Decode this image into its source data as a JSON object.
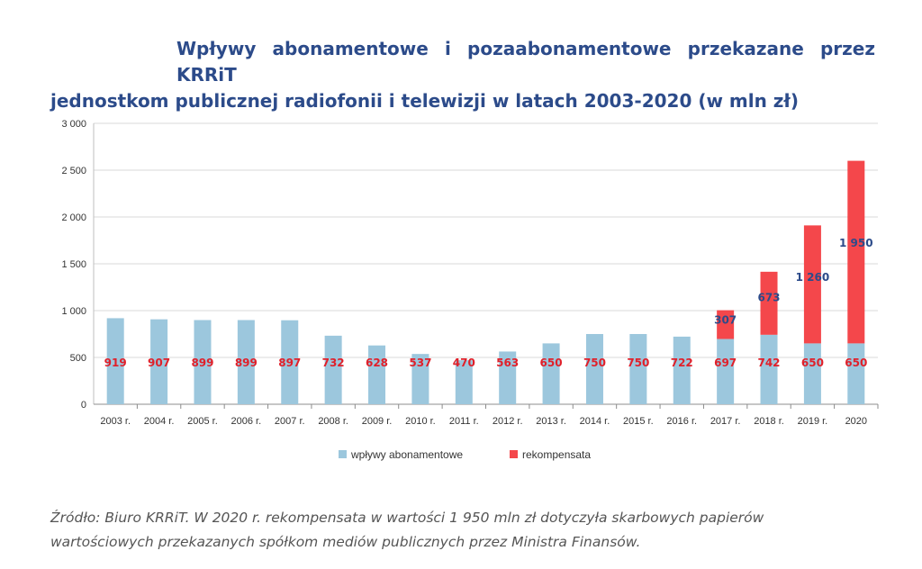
{
  "title_line1": "Wpływy abonamentowe i pozaabonamentowe przekazane przez KRRiT",
  "title_line2": "jednostkom publicznej radiofonii i telewizji w latach 2003-2020 (w mln zł)",
  "source_line1": "Źródło: Biuro KRRiT. W 2020 r. rekompensata w wartości 1 950 mln zł dotyczyła skarbowych papierów",
  "source_line2": "wartościowych przekazanych spółkom mediów publicznych przez Ministra Finansów.",
  "chart_data": {
    "type": "bar",
    "stacked": true,
    "categories": [
      "2003 r.",
      "2004 r.",
      "2005 r.",
      "2006 r.",
      "2007 r.",
      "2008 r.",
      "2009 r.",
      "2010 r.",
      "2011 r.",
      "2012 r.",
      "2013 r.",
      "2014 r.",
      "2015 r.",
      "2016 r.",
      "2017 r.",
      "2018 r.",
      "2019 r.",
      "2020"
    ],
    "series": [
      {
        "name": "wpływy abonamentowe",
        "color": "#9cc7dd",
        "label_color": "#e0202a",
        "values": [
          919,
          907,
          899,
          899,
          897,
          732,
          628,
          537,
          470,
          563,
          650,
          750,
          750,
          722,
          697,
          742,
          650,
          650
        ],
        "labels": [
          "919",
          "907",
          "899",
          "899",
          "897",
          "732",
          "628",
          "537",
          "470",
          "563",
          "650",
          "750",
          "750",
          "722",
          "697",
          "742",
          "650",
          "650"
        ]
      },
      {
        "name": "rekompensata",
        "color": "#f4474b",
        "label_color": "#2c4b8a",
        "values": [
          0,
          0,
          0,
          0,
          0,
          0,
          0,
          0,
          0,
          0,
          0,
          0,
          0,
          0,
          307,
          673,
          1260,
          1950
        ],
        "labels": [
          "",
          "",
          "",
          "",
          "",
          "",
          "",
          "",
          "",
          "",
          "",
          "",
          "",
          "",
          "307",
          "673",
          "1 260",
          "1 950"
        ]
      }
    ],
    "yticks": [
      0,
      500,
      1000,
      1500,
      2000,
      2500,
      3000
    ],
    "ytick_labels": [
      "0",
      "500",
      "1 000",
      "1 500",
      "2 000",
      "2 500",
      "3 000"
    ],
    "ylim": [
      0,
      3000
    ],
    "grid": true,
    "legend_position": "bottom"
  }
}
